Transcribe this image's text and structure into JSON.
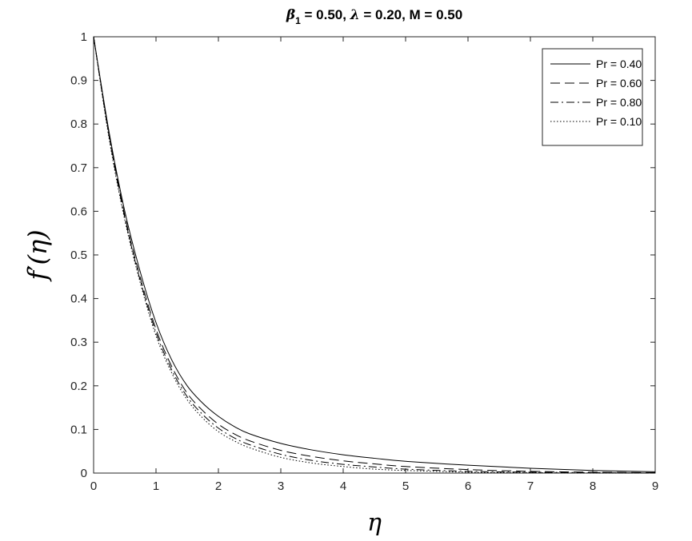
{
  "chart_data": {
    "type": "line",
    "title": {
      "beta_symbol": "β",
      "beta_subscript": "1",
      "beta_value": " = 0.50, ",
      "lambda_symbol": "λ",
      "rest": " = 0.20, M = 0.50"
    },
    "xlabel": "η",
    "ylabel": {
      "f": "f",
      "prime": "′",
      "arg": "(η)"
    },
    "xlim": [
      0,
      9
    ],
    "ylim": [
      0,
      1
    ],
    "xticks": [
      0,
      1,
      2,
      3,
      4,
      5,
      6,
      7,
      8,
      9
    ],
    "yticks": [
      0,
      0.1,
      0.2,
      0.3,
      0.4,
      0.5,
      0.6,
      0.7,
      0.8,
      0.9,
      1
    ],
    "ytick_labels": [
      "0",
      "0.1",
      "0.2",
      "0.3",
      "0.4",
      "0.5",
      "0.6",
      "0.7",
      "0.8",
      "0.9",
      "1"
    ],
    "grid": false,
    "legend_position": "top-right",
    "series": [
      {
        "name": "Pr = 0.40",
        "dash": "solid",
        "x": [
          0,
          0.25,
          0.5,
          0.75,
          1,
          1.25,
          1.5,
          1.75,
          2,
          2.25,
          2.5,
          3,
          3.5,
          4,
          4.5,
          5,
          6,
          7,
          8,
          9
        ],
        "y": [
          1,
          0.78,
          0.6,
          0.46,
          0.345,
          0.26,
          0.2,
          0.16,
          0.13,
          0.107,
          0.09,
          0.068,
          0.053,
          0.042,
          0.034,
          0.027,
          0.018,
          0.011,
          0.006,
          0.003
        ]
      },
      {
        "name": "Pr = 0.60",
        "dash": "dashed",
        "x": [
          0,
          0.25,
          0.5,
          0.75,
          1,
          1.25,
          1.5,
          1.75,
          2,
          2.25,
          2.5,
          3,
          3.5,
          4,
          4.5,
          5,
          6,
          7,
          8,
          9
        ],
        "y": [
          1,
          0.775,
          0.59,
          0.447,
          0.33,
          0.245,
          0.183,
          0.143,
          0.112,
          0.09,
          0.074,
          0.052,
          0.038,
          0.028,
          0.021,
          0.015,
          0.008,
          0.004,
          0.002,
          0.001
        ]
      },
      {
        "name": "Pr = 0.80",
        "dash": "dashdot",
        "x": [
          0,
          0.25,
          0.5,
          0.75,
          1,
          1.25,
          1.5,
          1.75,
          2,
          2.25,
          2.5,
          3,
          3.5,
          4,
          4.5,
          5,
          6,
          7,
          8,
          9
        ],
        "y": [
          1,
          0.77,
          0.585,
          0.44,
          0.322,
          0.237,
          0.175,
          0.134,
          0.103,
          0.081,
          0.065,
          0.043,
          0.029,
          0.02,
          0.014,
          0.009,
          0.004,
          0.002,
          0.001,
          0
        ]
      },
      {
        "name": "Pr = 0.10",
        "dash": "dotted",
        "x": [
          0,
          0.25,
          0.5,
          0.75,
          1,
          1.25,
          1.5,
          1.75,
          2,
          2.25,
          2.5,
          3,
          3.5,
          4,
          4.5,
          5,
          6,
          7,
          8,
          9
        ],
        "y": [
          1,
          0.765,
          0.58,
          0.435,
          0.315,
          0.23,
          0.168,
          0.126,
          0.095,
          0.074,
          0.058,
          0.036,
          0.023,
          0.015,
          0.009,
          0.006,
          0.002,
          0.001,
          0,
          0
        ]
      }
    ]
  }
}
